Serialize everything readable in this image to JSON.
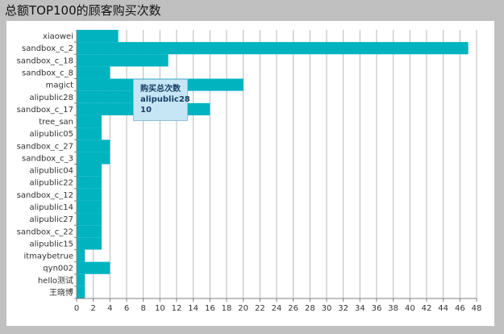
{
  "title": "总额TOP100的顾客购买次数",
  "tooltip": {
    "series_label": "购买总次数",
    "category": "alipublic28",
    "value": "10"
  },
  "colors": {
    "bar": "#00b3bf",
    "grid": "#b8b8b8",
    "axis": "#808080",
    "background": "#c0c0c0",
    "plot_background": "#ffffff"
  },
  "chart_data": {
    "type": "bar",
    "orientation": "horizontal",
    "title": "总额TOP100的顾客购买次数",
    "xlabel": "",
    "ylabel": "",
    "xlim": [
      0,
      48
    ],
    "xticks": [
      0,
      2,
      4,
      6,
      8,
      10,
      12,
      14,
      16,
      18,
      20,
      22,
      24,
      26,
      28,
      30,
      32,
      34,
      36,
      38,
      40,
      42,
      44,
      46,
      48
    ],
    "grid": true,
    "legend": "none",
    "categories": [
      "xiaowei",
      "sandbox_c_2",
      "sandbox_c_18",
      "sandbox_c_8",
      "magict",
      "alipublic28",
      "sandbox_c_17",
      "tree_san",
      "alipublic05",
      "sandbox_c_27",
      "sandbox_c_3",
      "alipublic04",
      "alipublic22",
      "sandbox_c_12",
      "alipublic14",
      "alipublic27",
      "sandbox_c_22",
      "alipublic15",
      "itmaybetrue",
      "qyn002",
      "hello测试",
      "王晓博"
    ],
    "values": [
      5,
      47,
      11,
      4,
      20,
      10,
      16,
      3,
      3,
      4,
      4,
      3,
      3,
      3,
      3,
      3,
      3,
      3,
      1,
      4,
      1,
      1
    ]
  }
}
